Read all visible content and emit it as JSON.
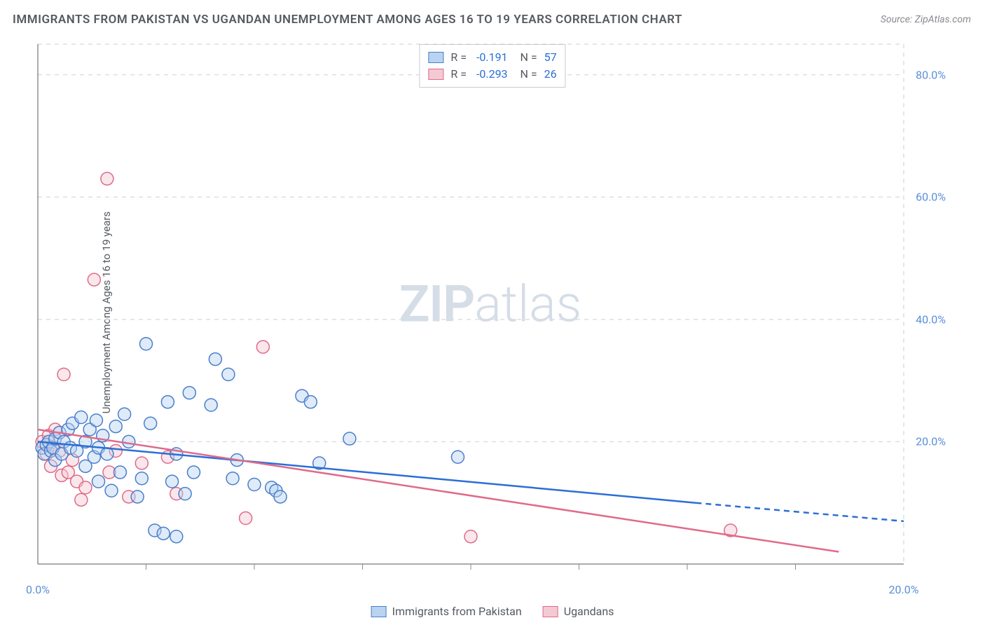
{
  "title": "IMMIGRANTS FROM PAKISTAN VS UGANDAN UNEMPLOYMENT AMONG AGES 16 TO 19 YEARS CORRELATION CHART",
  "source": "Source: ZipAtlas.com",
  "y_axis_label": "Unemployment Among Ages 16 to 19 years",
  "watermark": {
    "zip": "ZIP",
    "atlas": "atlas"
  },
  "chart": {
    "type": "scatter",
    "background_color": "#ffffff",
    "grid_color": "#dcdfe4",
    "axis_color": "#555a60",
    "tick_color": "#888a90",
    "xlim": [
      0,
      20
    ],
    "ylim": [
      0,
      85
    ],
    "y_ticks": [
      {
        "value": 20,
        "label": "20.0%"
      },
      {
        "value": 40,
        "label": "40.0%"
      },
      {
        "value": 60,
        "label": "60.0%"
      },
      {
        "value": 80,
        "label": "80.0%"
      }
    ],
    "x_ticks_minor": [
      2.5,
      5.0,
      7.5,
      10.0,
      12.5,
      15.0,
      17.5
    ],
    "x_tick_labels": [
      {
        "value": 0,
        "label": "0.0%"
      },
      {
        "value": 20,
        "label": "20.0%"
      }
    ],
    "marker_radius": 9,
    "marker_stroke_width": 1.5,
    "marker_fill_opacity": 0.45,
    "series": [
      {
        "name": "Immigrants from Pakistan",
        "color_fill": "#b9d3f0",
        "color_stroke": "#4a7ecb",
        "R": "-0.191",
        "N": "57",
        "regression": {
          "solid": {
            "x1": 0,
            "y1": 20.0,
            "x2": 15.2,
            "y2": 10.0
          },
          "dashed": {
            "x1": 15.2,
            "y1": 10.0,
            "x2": 20,
            "y2": 7.0
          },
          "color": "#2a6fd6",
          "width": 2.5
        },
        "points": [
          [
            0.1,
            19.0
          ],
          [
            0.15,
            18.0
          ],
          [
            0.2,
            19.5
          ],
          [
            0.25,
            20.0
          ],
          [
            0.3,
            18.5
          ],
          [
            0.35,
            19.0
          ],
          [
            0.4,
            20.5
          ],
          [
            0.4,
            17.0
          ],
          [
            0.5,
            21.5
          ],
          [
            0.55,
            18.0
          ],
          [
            0.6,
            20.0
          ],
          [
            0.7,
            22.0
          ],
          [
            0.75,
            19.0
          ],
          [
            0.8,
            23.0
          ],
          [
            0.9,
            18.5
          ],
          [
            1.0,
            24.0
          ],
          [
            1.1,
            20.0
          ],
          [
            1.2,
            22.0
          ],
          [
            1.3,
            17.5
          ],
          [
            1.35,
            23.5
          ],
          [
            1.4,
            19.0
          ],
          [
            1.5,
            21.0
          ],
          [
            1.6,
            18.0
          ],
          [
            1.7,
            12.0
          ],
          [
            1.8,
            22.5
          ],
          [
            1.9,
            15.0
          ],
          [
            2.0,
            24.5
          ],
          [
            2.1,
            20.0
          ],
          [
            2.3,
            11.0
          ],
          [
            2.4,
            14.0
          ],
          [
            2.5,
            36.0
          ],
          [
            2.6,
            23.0
          ],
          [
            2.7,
            5.5
          ],
          [
            3.0,
            26.5
          ],
          [
            3.1,
            13.5
          ],
          [
            3.2,
            18.0
          ],
          [
            3.4,
            11.5
          ],
          [
            3.5,
            28.0
          ],
          [
            3.6,
            15.0
          ],
          [
            4.0,
            26.0
          ],
          [
            4.1,
            33.5
          ],
          [
            4.4,
            31.0
          ],
          [
            4.5,
            14.0
          ],
          [
            4.6,
            17.0
          ],
          [
            5.0,
            13.0
          ],
          [
            5.4,
            12.5
          ],
          [
            5.5,
            12.0
          ],
          [
            5.6,
            11.0
          ],
          [
            6.1,
            27.5
          ],
          [
            6.3,
            26.5
          ],
          [
            6.5,
            16.5
          ],
          [
            7.2,
            20.5
          ],
          [
            9.7,
            17.5
          ],
          [
            1.1,
            16.0
          ],
          [
            1.4,
            13.5
          ],
          [
            2.9,
            5.0
          ],
          [
            3.2,
            4.5
          ]
        ]
      },
      {
        "name": "Ugandans",
        "color_fill": "#f5c9d3",
        "color_stroke": "#e06a8a",
        "R": "-0.293",
        "N": "26",
        "regression": {
          "solid": {
            "x1": 0,
            "y1": 22.0,
            "x2": 18.5,
            "y2": 2.0
          },
          "dashed": null,
          "color": "#e06a8a",
          "width": 2.5
        },
        "points": [
          [
            0.1,
            20.0
          ],
          [
            0.2,
            18.0
          ],
          [
            0.25,
            21.0
          ],
          [
            0.3,
            16.0
          ],
          [
            0.35,
            19.0
          ],
          [
            0.4,
            22.0
          ],
          [
            0.5,
            18.5
          ],
          [
            0.55,
            14.5
          ],
          [
            0.6,
            31.0
          ],
          [
            0.7,
            15.0
          ],
          [
            0.8,
            17.0
          ],
          [
            0.9,
            13.5
          ],
          [
            1.0,
            10.5
          ],
          [
            1.1,
            12.5
          ],
          [
            1.3,
            46.5
          ],
          [
            1.6,
            63.0
          ],
          [
            1.65,
            15.0
          ],
          [
            1.8,
            18.5
          ],
          [
            2.1,
            11.0
          ],
          [
            2.4,
            16.5
          ],
          [
            3.0,
            17.5
          ],
          [
            3.2,
            11.5
          ],
          [
            4.8,
            7.5
          ],
          [
            5.2,
            35.5
          ],
          [
            10.0,
            4.5
          ],
          [
            16.0,
            5.5
          ]
        ]
      }
    ],
    "legend_bottom": [
      {
        "label": "Immigrants from Pakistan",
        "swatch": "blue"
      },
      {
        "label": "Ugandans",
        "swatch": "pink"
      }
    ]
  }
}
